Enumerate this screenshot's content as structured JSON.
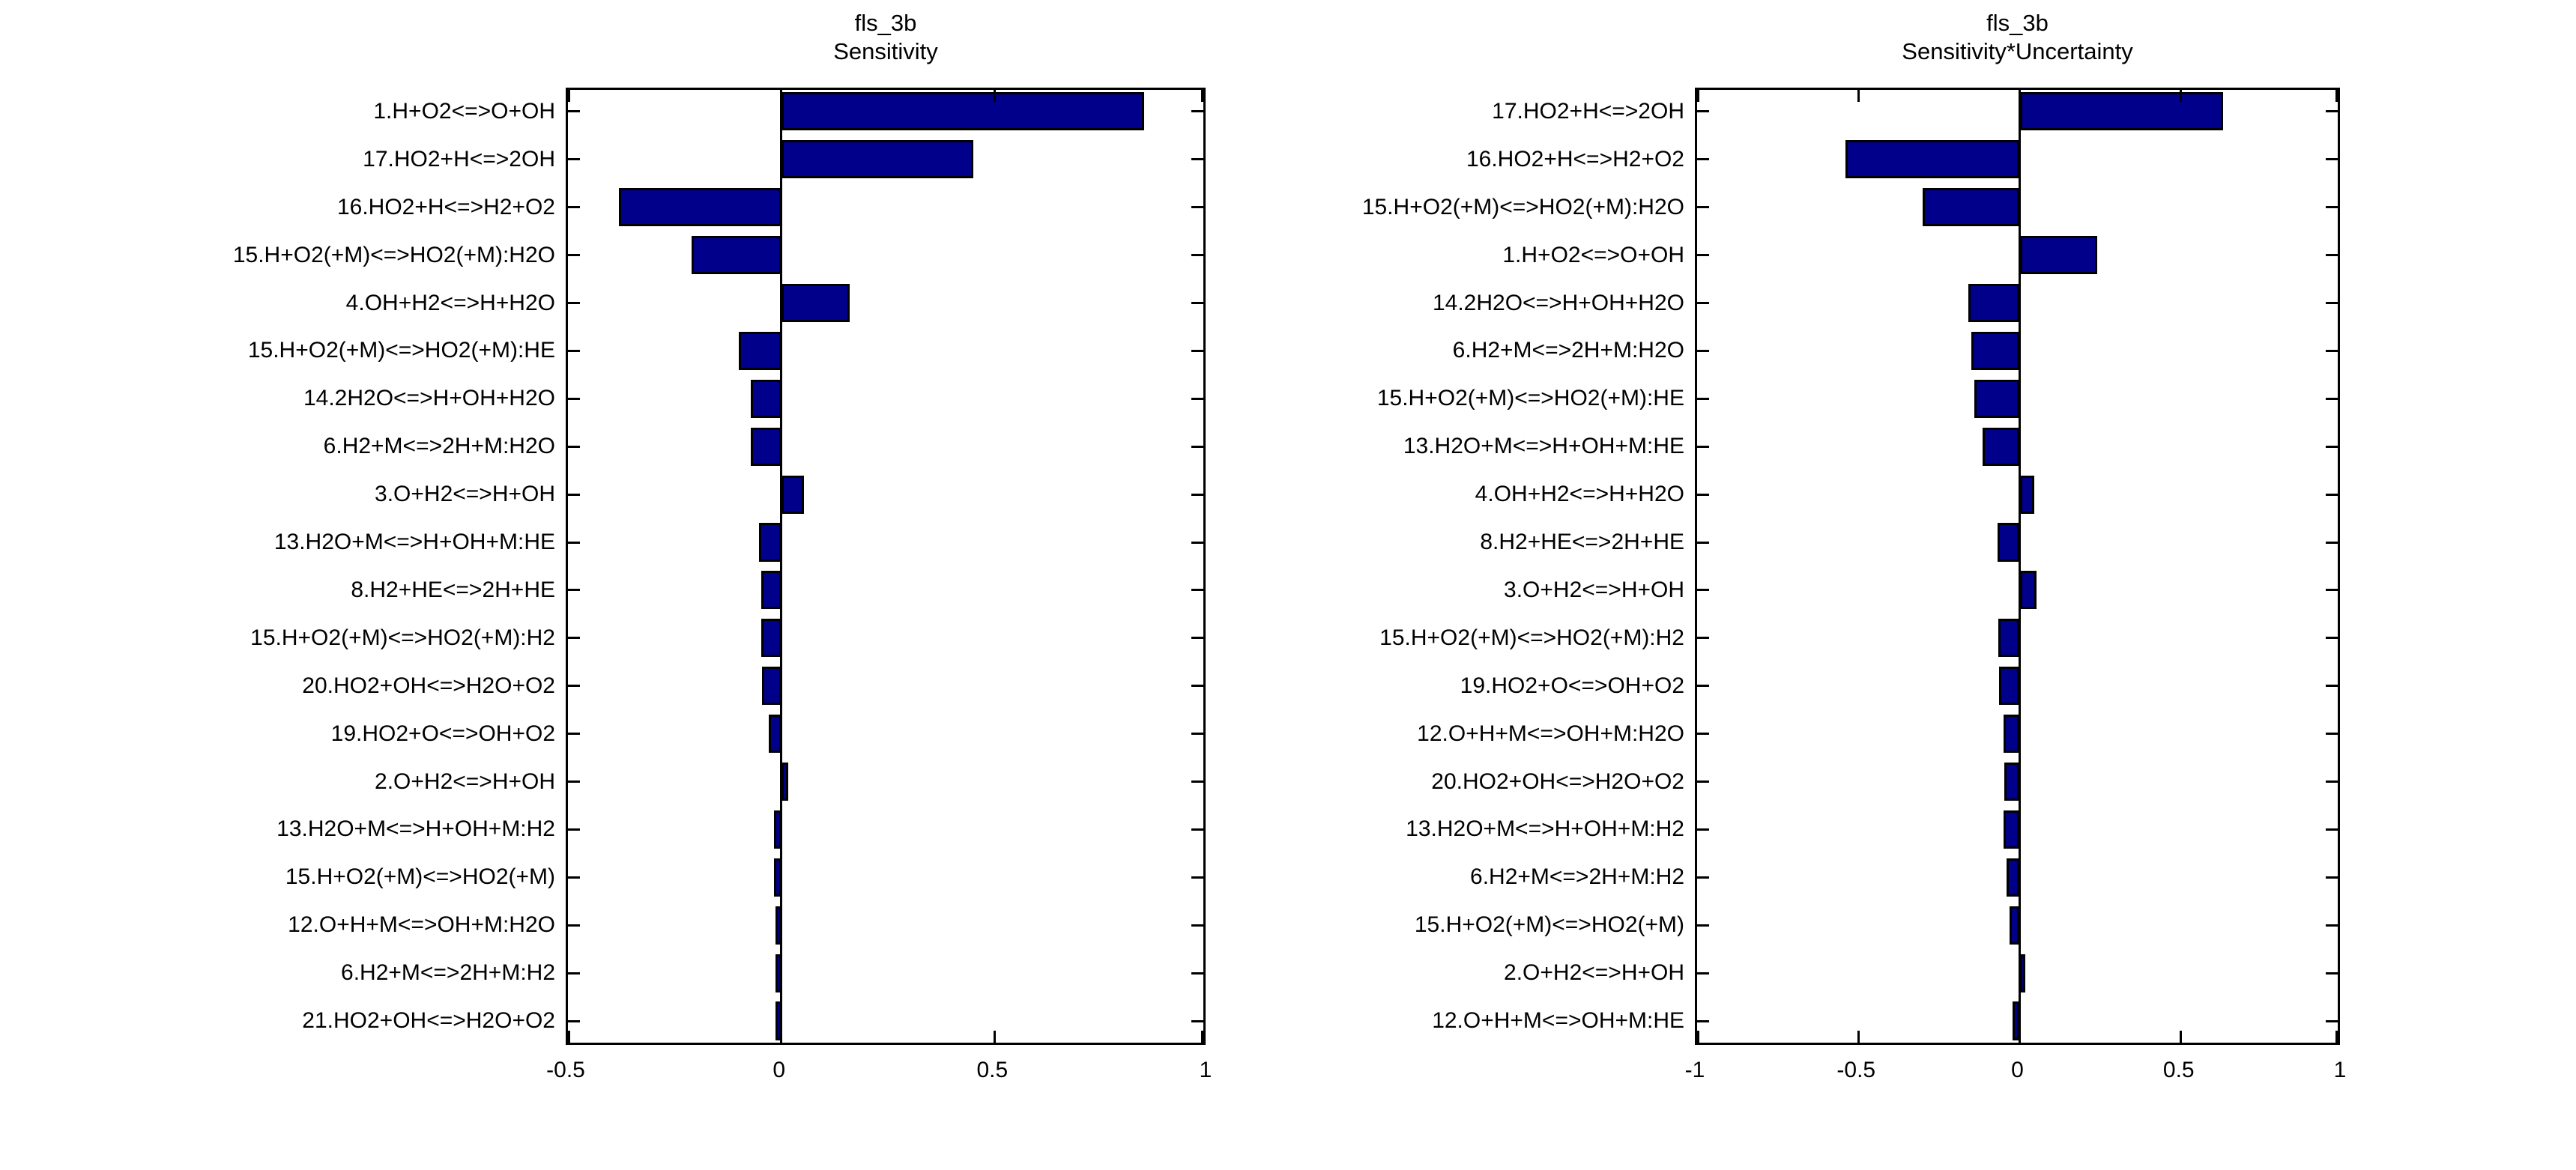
{
  "figure": {
    "background": "#ffffff",
    "axis_color": "#000000"
  },
  "chart_data": [
    {
      "type": "bar",
      "orientation": "horizontal",
      "title_lines": [
        "fls_3b",
        "Sensitivity"
      ],
      "bar_color": "#00008B",
      "bar_edge_color": "#000000",
      "xlim": [
        -0.5,
        1
      ],
      "xticks": [
        -0.5,
        0,
        0.5,
        1
      ],
      "xtick_labels": [
        "-0.5",
        "0",
        "0.5",
        "1"
      ],
      "grid": false,
      "categories": [
        "1.H+O2<=>O+OH",
        "17.HO2+H<=>2OH",
        "16.HO2+H<=>H2+O2",
        "15.H+O2(+M)<=>HO2(+M):H2O",
        "4.OH+H2<=>H+H2O",
        "15.H+O2(+M)<=>HO2(+M):HE",
        "14.2H2O<=>H+OH+H2O",
        "6.H2+M<=>2H+M:H2O",
        "3.O+H2<=>H+OH",
        "13.H2O+M<=>H+OH+M:HE",
        "8.H2+HE<=>2H+HE",
        "15.H+O2(+M)<=>HO2(+M):H2",
        "20.HO2+OH<=>H2O+O2",
        "19.HO2+O<=>OH+O2",
        "2.O+H2<=>H+OH",
        "13.H2O+M<=>H+OH+M:H2",
        "15.H+O2(+M)<=>HO2(+M)",
        "12.O+H+M<=>OH+M:H2O",
        "6.H2+M<=>2H+M:H2",
        "21.HO2+OH<=>H2O+O2"
      ],
      "values": [
        0.85,
        0.45,
        -0.38,
        -0.21,
        0.16,
        -0.1,
        -0.072,
        -0.071,
        0.054,
        -0.052,
        -0.047,
        -0.046,
        -0.045,
        -0.03,
        0.016,
        -0.017,
        -0.017,
        -0.013,
        -0.013,
        -0.013
      ]
    },
    {
      "type": "bar",
      "orientation": "horizontal",
      "title_lines": [
        "fls_3b",
        "Sensitivity*Uncertainty"
      ],
      "bar_color": "#00008B",
      "bar_edge_color": "#000000",
      "xlim": [
        -1,
        1
      ],
      "xticks": [
        -1,
        -0.5,
        0,
        0.5,
        1
      ],
      "xtick_labels": [
        "-1",
        "-0.5",
        "0",
        "0.5",
        "1"
      ],
      "grid": false,
      "categories": [
        "17.HO2+H<=>2OH",
        "16.HO2+H<=>H2+O2",
        "15.H+O2(+M)<=>HO2(+M):H2O",
        "1.H+O2<=>O+OH",
        "14.2H2O<=>H+OH+H2O",
        "6.H2+M<=>2H+M:H2O",
        "15.H+O2(+M)<=>HO2(+M):HE",
        "13.H2O+M<=>H+OH+M:HE",
        "4.OH+H2<=>H+H2O",
        "8.H2+HE<=>2H+HE",
        "3.O+H2<=>H+OH",
        "15.H+O2(+M)<=>HO2(+M):H2",
        "19.HO2+O<=>OH+O2",
        "12.O+H+M<=>OH+M:H2O",
        "20.HO2+OH<=>H2O+O2",
        "13.H2O+M<=>H+OH+M:H2",
        "6.H2+M<=>2H+M:H2",
        "15.H+O2(+M)<=>HO2(+M)",
        "2.O+H2<=>H+OH",
        "12.O+H+M<=>OH+M:HE"
      ],
      "values": [
        0.63,
        -0.54,
        -0.3,
        0.24,
        -0.16,
        -0.15,
        -0.14,
        -0.115,
        0.046,
        -0.068,
        0.053,
        -0.066,
        -0.065,
        -0.051,
        -0.048,
        -0.05,
        -0.04,
        -0.031,
        0.018,
        -0.021
      ]
    }
  ]
}
